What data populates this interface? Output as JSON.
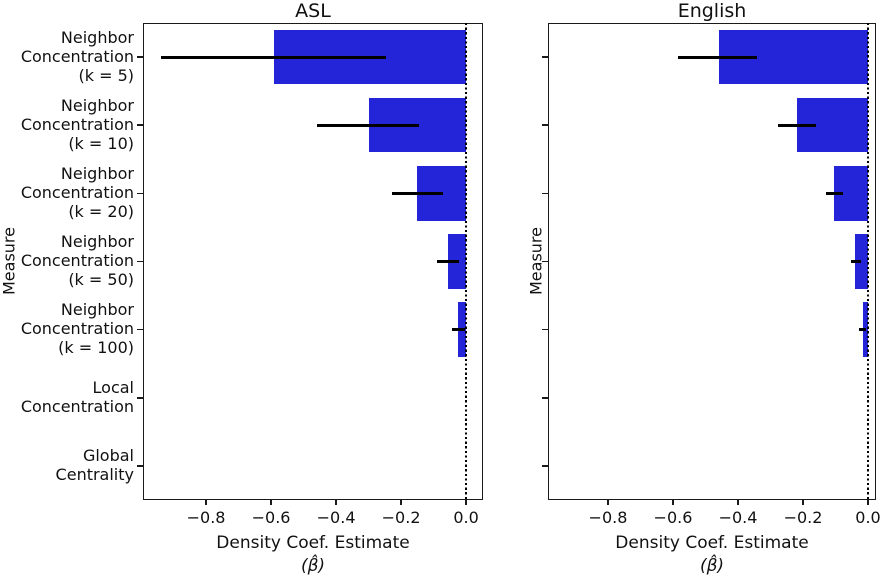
{
  "figure": {
    "ylabel": "Measure",
    "xlabel": "Density Coef. Estimate",
    "xlabel_sub": "(β̂)",
    "bar_color": "#2424d8",
    "error_color": "#000000",
    "zero_line_color": "#000000",
    "axis_color": "#1a1a1a"
  },
  "chart_data": [
    {
      "type": "bar",
      "orientation": "horizontal",
      "title": "ASL",
      "xlabel": "Density Coef. Estimate (β̂)",
      "ylabel": "Measure",
      "legend": "none",
      "grid": false,
      "zero_line": {
        "x": 0.0,
        "style": "dotted"
      },
      "xlim": [
        -0.994,
        0.052
      ],
      "x_ticks": [
        -0.8,
        -0.6,
        -0.4,
        -0.2,
        0.0
      ],
      "x_tick_labels": [
        "−0.8",
        "−0.6",
        "−0.4",
        "−0.2",
        "0.0"
      ],
      "show_category_labels": true,
      "categories": [
        "Neighbor Concentration (k = 5)",
        "Neighbor Concentration (k = 10)",
        "Neighbor Concentration (k = 20)",
        "Neighbor Concentration (k = 50)",
        "Neighbor Concentration (k = 100)",
        "Local Concentration",
        "Global Centrality"
      ],
      "category_lines": [
        [
          "Neighbor",
          "Concentration",
          "(k = 5)"
        ],
        [
          "Neighbor",
          "Concentration",
          "(k = 10)"
        ],
        [
          "Neighbor",
          "Concentration",
          "(k = 20)"
        ],
        [
          "Neighbor",
          "Concentration",
          "(k = 50)"
        ],
        [
          "Neighbor",
          "Concentration",
          "(k = 100)"
        ],
        [
          "Local",
          "Concentration"
        ],
        [
          "Global",
          "Centrality"
        ]
      ],
      "values": [
        -0.59,
        -0.3,
        -0.15,
        -0.056,
        -0.024,
        0,
        0
      ],
      "error_low": [
        -0.94,
        -0.46,
        -0.227,
        -0.09,
        -0.044,
        null,
        null
      ],
      "error_high": [
        -0.245,
        -0.145,
        -0.072,
        -0.022,
        -0.003,
        null,
        null
      ]
    },
    {
      "type": "bar",
      "orientation": "horizontal",
      "title": "English",
      "xlabel": "Density Coef. Estimate (β̂)",
      "ylabel": "Measure",
      "legend": "none",
      "grid": false,
      "zero_line": {
        "x": 0.0,
        "style": "dotted"
      },
      "xlim": [
        -0.9846,
        0.0246
      ],
      "x_ticks": [
        -0.8,
        -0.6,
        -0.4,
        -0.2,
        0.0
      ],
      "x_tick_labels": [
        "−0.8",
        "−0.6",
        "−0.4",
        "−0.2",
        "0.0"
      ],
      "show_category_labels": false,
      "categories": [
        "Neighbor Concentration (k = 5)",
        "Neighbor Concentration (k = 10)",
        "Neighbor Concentration (k = 20)",
        "Neighbor Concentration (k = 50)",
        "Neighbor Concentration (k = 100)",
        "Local Concentration",
        "Global Centrality"
      ],
      "values": [
        -0.46,
        -0.218,
        -0.104,
        -0.04,
        -0.016,
        0,
        0
      ],
      "error_low": [
        -0.586,
        -0.276,
        -0.129,
        -0.052,
        -0.027,
        null,
        null
      ],
      "error_high": [
        -0.34,
        -0.16,
        -0.077,
        -0.022,
        -0.006,
        null,
        null
      ]
    }
  ]
}
